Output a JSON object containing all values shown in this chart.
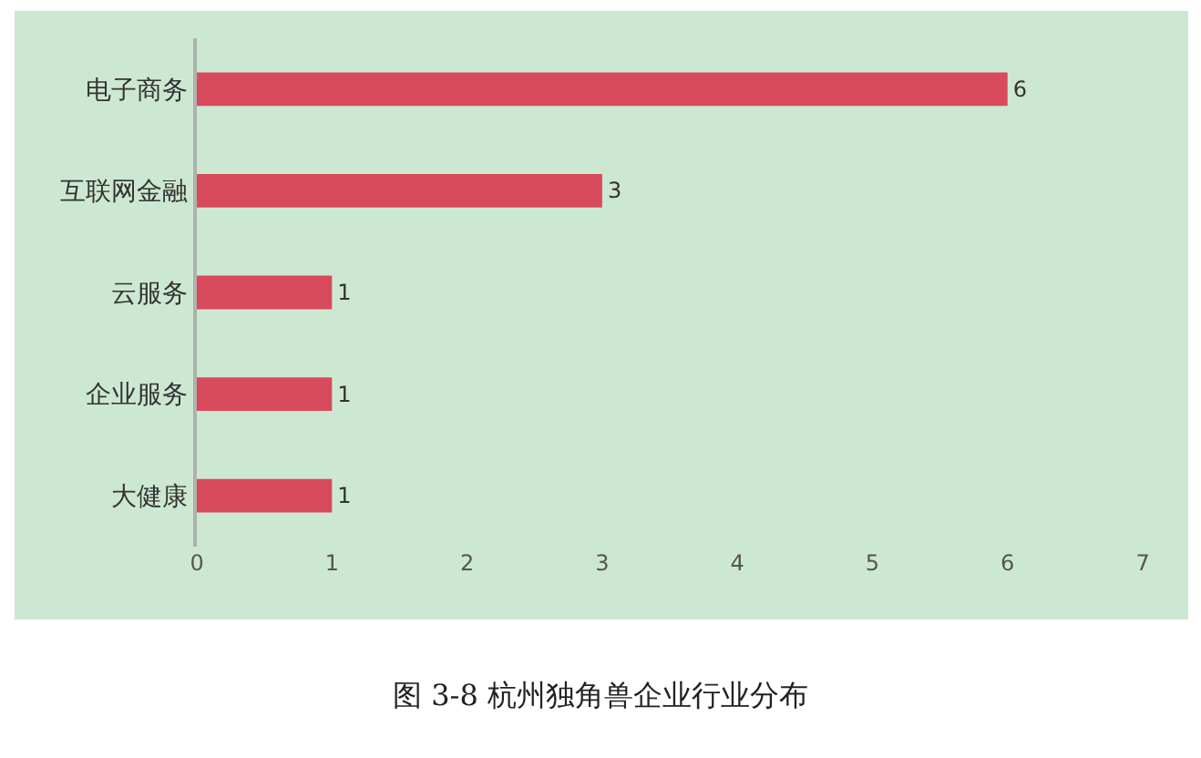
{
  "chart_data": {
    "type": "bar",
    "orientation": "horizontal",
    "title": "图 3-8 杭州独角兽企业行业分布",
    "categories": [
      "电子商务",
      "互联网金融",
      "云服务",
      "企业服务",
      "大健康"
    ],
    "values": [
      6,
      3,
      1,
      1,
      1
    ],
    "color": "#d94a5c",
    "xlim": [
      0,
      7
    ],
    "xticks": [
      0,
      1,
      2,
      3,
      4,
      5,
      6,
      7
    ],
    "grid": false,
    "legend": false,
    "data_labels": true
  }
}
